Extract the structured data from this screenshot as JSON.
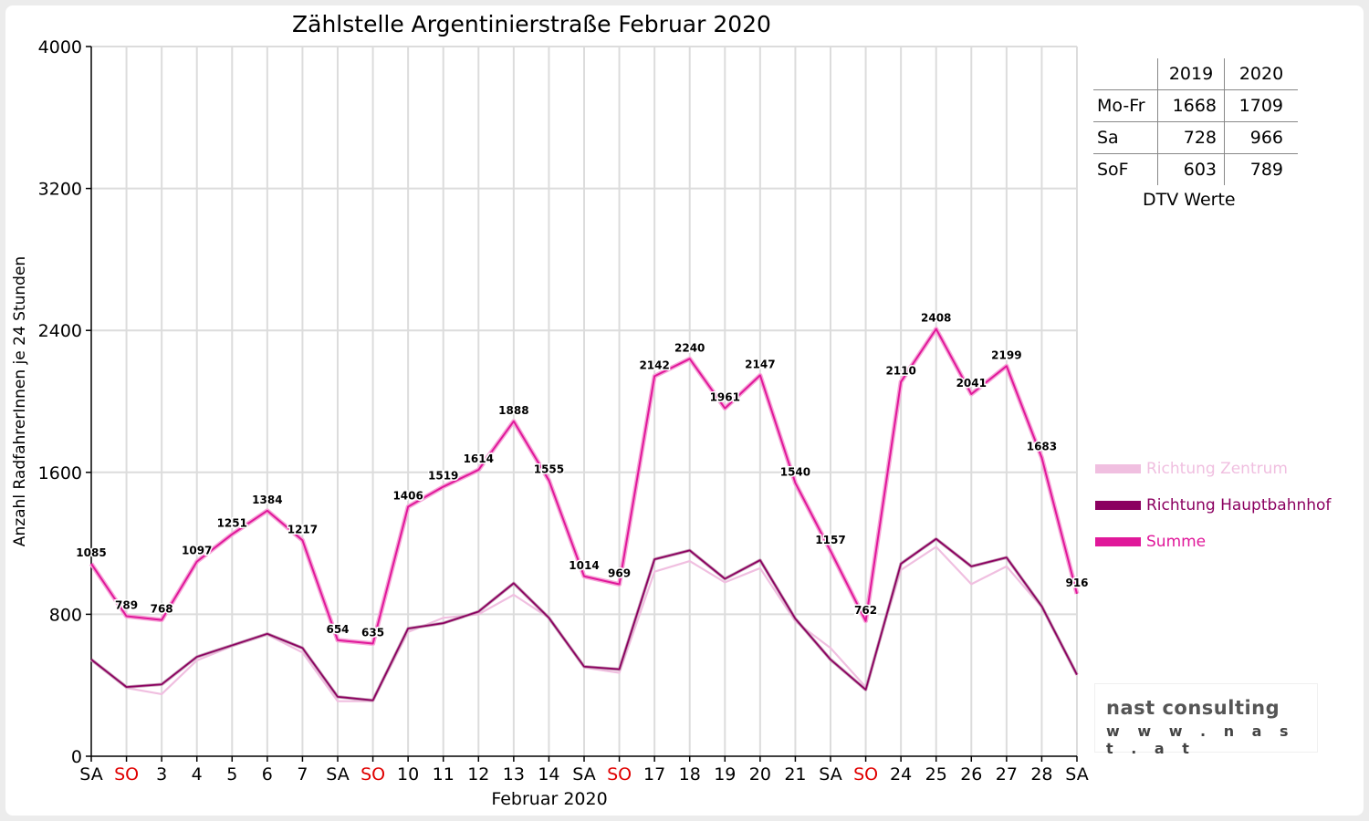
{
  "chart_data": {
    "type": "line",
    "title": "Zählstelle Argentinierstraße Februar 2020",
    "xlabel": "Februar 2020",
    "ylabel": "Anzahl RadfahrerInnen je 24 Stunden",
    "ylim": [
      0,
      4000
    ],
    "yticks": [
      0,
      800,
      1600,
      2400,
      3200,
      4000
    ],
    "grid": true,
    "legend_position": "right",
    "categories": [
      "SA",
      "SO",
      "3",
      "4",
      "5",
      "6",
      "7",
      "SA",
      "SO",
      "10",
      "11",
      "12",
      "13",
      "14",
      "SA",
      "SO",
      "17",
      "18",
      "19",
      "20",
      "21",
      "SA",
      "SO",
      "24",
      "25",
      "26",
      "27",
      "28",
      "SA"
    ],
    "category_colors": [
      "#000000",
      "#e00000",
      "#000000",
      "#000000",
      "#000000",
      "#000000",
      "#000000",
      "#000000",
      "#e00000",
      "#000000",
      "#000000",
      "#000000",
      "#000000",
      "#000000",
      "#000000",
      "#e00000",
      "#000000",
      "#000000",
      "#000000",
      "#000000",
      "#000000",
      "#000000",
      "#e00000",
      "#000000",
      "#000000",
      "#000000",
      "#000000",
      "#000000",
      "#000000"
    ],
    "series": [
      {
        "name": "Richtung Zentrum",
        "color": "#f0bfe0",
        "values": [
          540,
          385,
          350,
          540,
          620,
          685,
          585,
          310,
          310,
          700,
          780,
          800,
          910,
          780,
          500,
          470,
          1040,
          1100,
          980,
          1060,
          760,
          610,
          390,
          1050,
          1180,
          970,
          1070,
          840,
          455
        ]
      },
      {
        "name": "Richtung Hauptbahnhof",
        "color": "#8b0060",
        "values": [
          545,
          390,
          405,
          560,
          625,
          690,
          610,
          335,
          315,
          720,
          750,
          815,
          975,
          780,
          505,
          490,
          1110,
          1160,
          1000,
          1105,
          775,
          545,
          375,
          1085,
          1225,
          1070,
          1120,
          845,
          460
        ]
      },
      {
        "name": "Summe",
        "color": "#e0189a",
        "values": [
          1085,
          789,
          768,
          1097,
          1251,
          1384,
          1217,
          654,
          635,
          1406,
          1519,
          1614,
          1888,
          1555,
          1014,
          969,
          2142,
          2240,
          1961,
          2147,
          1540,
          1157,
          762,
          2110,
          2408,
          2041,
          2199,
          1683,
          916
        ],
        "data_labels": [
          "1085",
          "789",
          "768",
          "1097",
          "1251",
          "1384",
          "1217",
          "654",
          "635",
          "1406",
          "1519",
          "1614",
          "1888",
          "1555",
          "1014",
          "969",
          "2142",
          "2240",
          "1961",
          "2147",
          "1540",
          "1157",
          "762",
          "2110",
          "2408",
          "2041",
          "2199",
          "1683",
          "916"
        ]
      }
    ]
  },
  "dtv_table": {
    "header": [
      "",
      "2019",
      "2020"
    ],
    "rows": [
      {
        "label": "Mo-Fr",
        "v2019": "1668",
        "v2020": "1709"
      },
      {
        "label": "Sa",
        "v2019": "728",
        "v2020": "966"
      },
      {
        "label": "SoF",
        "v2019": "603",
        "v2020": "789"
      }
    ],
    "caption": "DTV Werte"
  },
  "logo": {
    "name": "nast consulting",
    "url": "w w w . n a s t . a t"
  }
}
